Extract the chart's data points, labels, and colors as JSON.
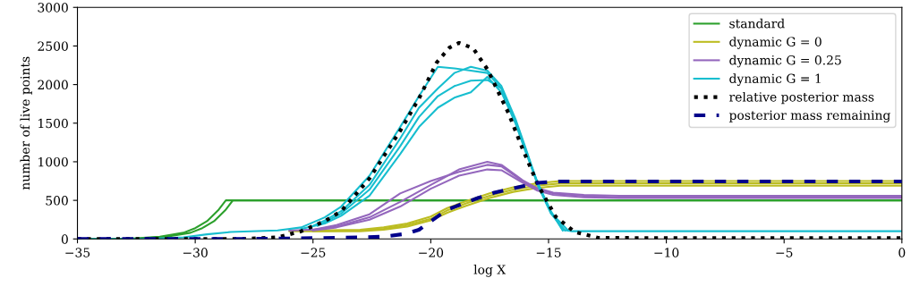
{
  "chart_data": {
    "type": "line",
    "xlabel": "log X",
    "ylabel": "number of live points",
    "xlim": [
      -35,
      0
    ],
    "ylim": [
      0,
      3000
    ],
    "xticks": [
      {
        "value": -35,
        "label": "−35"
      },
      {
        "value": -30,
        "label": "−30"
      },
      {
        "value": -25,
        "label": "−25"
      },
      {
        "value": -20,
        "label": "−20"
      },
      {
        "value": -15,
        "label": "−15"
      },
      {
        "value": -10,
        "label": "−10"
      },
      {
        "value": -5,
        "label": "−5"
      },
      0
    ],
    "yticks": [
      0,
      500,
      1000,
      1500,
      2000,
      2500,
      3000
    ],
    "grid": false,
    "legend": "top right",
    "marker": "none",
    "series": [
      {
        "name": "standard",
        "color": "#2ca02c",
        "line_style": "solid",
        "x": [
          -35,
          -33.5,
          -32.5,
          -31.5,
          -30.5,
          -30,
          -29.5,
          -29,
          -28.7,
          0
        ],
        "values": [
          0,
          0,
          10,
          30,
          80,
          140,
          230,
          380,
          500,
          500
        ]
      },
      {
        "color": "#2ca02c",
        "line_style": "solid",
        "x": [
          -35,
          -33.2,
          -32.2,
          -31.2,
          -30.2,
          -29.7,
          -29.2,
          -28.7,
          -28.4,
          0
        ],
        "values": [
          0,
          0,
          10,
          30,
          80,
          140,
          230,
          380,
          500,
          500
        ]
      },
      {
        "name": "dynamic G = 0",
        "color": "#bcbd22",
        "line_style": "solid",
        "x": [
          -26,
          -25,
          -23,
          -22,
          -21,
          -20,
          -19.3,
          -18.5,
          -17.5,
          -16.5,
          -15.5,
          -14.5,
          0
        ],
        "values": [
          100,
          100,
          110,
          130,
          180,
          260,
          370,
          460,
          560,
          640,
          690,
          720,
          720
        ]
      },
      {
        "color": "#bcbd22",
        "line_style": "solid",
        "x": [
          -25.5,
          -25,
          -23,
          -22,
          -21,
          -20,
          -19.3,
          -18.5,
          -17.5,
          -16.5,
          -15.5,
          -14.5,
          0
        ],
        "values": [
          110,
          110,
          120,
          150,
          200,
          290,
          400,
          490,
          590,
          670,
          720,
          750,
          750
        ]
      },
      {
        "color": "#bcbd22",
        "line_style": "solid",
        "x": [
          -25,
          -24,
          -23,
          -22,
          -21,
          -20,
          -19.3,
          -18.5,
          -17.5,
          -16.5,
          -15.5,
          -14.5,
          0
        ],
        "values": [
          100,
          100,
          100,
          120,
          160,
          240,
          340,
          430,
          530,
          610,
          660,
          690,
          690
        ]
      },
      {
        "name": "dynamic G = 0.25",
        "color": "#9467bd",
        "line_style": "solid",
        "x": [
          -26,
          -25,
          -24,
          -22.6,
          -21.3,
          -20,
          -18.8,
          -17.6,
          -17,
          -16.1,
          -15.5,
          -14.8,
          -13.5,
          -12,
          0
        ],
        "values": [
          110,
          120,
          180,
          320,
          590,
          750,
          870,
          960,
          940,
          750,
          650,
          590,
          560,
          540,
          540
        ]
      },
      {
        "color": "#9467bd",
        "line_style": "solid",
        "x": [
          -25.5,
          -25,
          -24,
          -22.6,
          -21.3,
          -20,
          -18.8,
          -17.6,
          -17,
          -16.1,
          -15.5,
          -14.8,
          -13.5,
          -12,
          0
        ],
        "values": [
          120,
          120,
          160,
          280,
          480,
          700,
          900,
          1000,
          960,
          760,
          660,
          600,
          570,
          560,
          560
        ]
      },
      {
        "color": "#9467bd",
        "line_style": "solid",
        "x": [
          -25,
          -24,
          -22.6,
          -21.3,
          -20,
          -18.8,
          -17.6,
          -17,
          -16.1,
          -15.5,
          -14.8,
          -13.5,
          -12,
          0
        ],
        "values": [
          110,
          150,
          250,
          420,
          650,
          820,
          900,
          890,
          730,
          630,
          570,
          540,
          530,
          530
        ]
      },
      {
        "name": "dynamic G = 1",
        "color": "#17becf",
        "line_style": "solid",
        "x": [
          -35,
          -32,
          -30.5,
          -29.5,
          -28.5,
          -26.5,
          -25.5,
          -24.5,
          -23.8,
          -22.6,
          -21.3,
          -20.5,
          -19.7,
          -19,
          -18.3,
          -17.6,
          -17,
          -16.4,
          -16,
          -15.45,
          -14.9,
          -14.4,
          -14,
          0
        ],
        "values": [
          0,
          0,
          20,
          60,
          90,
          110,
          150,
          280,
          420,
          820,
          1450,
          1850,
          2230,
          2210,
          2180,
          2150,
          1950,
          1500,
          1170,
          700,
          350,
          120,
          100,
          100
        ]
      },
      {
        "color": "#17becf",
        "line_style": "solid",
        "x": [
          -25.5,
          -24.5,
          -23.8,
          -22.6,
          -21.3,
          -20.5,
          -19.7,
          -19,
          -18.3,
          -17.6,
          -17,
          -16.4,
          -16,
          -15.45,
          -14.9,
          -14.4
        ],
        "values": [
          130,
          200,
          300,
          560,
          1100,
          1450,
          1700,
          1830,
          1900,
          2100,
          1900,
          1500,
          1150,
          720,
          360,
          110
        ]
      },
      {
        "color": "#17becf",
        "line_style": "solid",
        "x": [
          -25,
          -24.5,
          -23.8,
          -22.6,
          -21.3,
          -20.5,
          -19.7,
          -19,
          -18.3,
          -17.6,
          -17,
          -16.4,
          -16,
          -15.45,
          -14.9,
          -14.2
        ],
        "values": [
          170,
          240,
          360,
          700,
          1300,
          1700,
          1950,
          2150,
          2230,
          2180,
          1980,
          1550,
          1200,
          710,
          340,
          120
        ]
      },
      {
        "color": "#17becf",
        "line_style": "solid",
        "x": [
          -24.8,
          -24.5,
          -23.8,
          -22.6,
          -21.3,
          -20.5,
          -19.7,
          -19,
          -18.3,
          -17.6,
          -17,
          -16.4,
          -16,
          -15.45,
          -14.9,
          -14.3
        ],
        "values": [
          170,
          220,
          330,
          640,
          1200,
          1580,
          1850,
          1980,
          2050,
          2060,
          1950,
          1520,
          1180,
          690,
          330,
          110
        ]
      },
      {
        "name": "relative posterior mass",
        "color": "#000000",
        "line_style": "dotted",
        "x": [
          -35,
          -28,
          -26.5,
          -25.5,
          -24.5,
          -23.8,
          -22.6,
          -21.3,
          -20.5,
          -19.75,
          -19.2,
          -18.8,
          -18.2,
          -17.6,
          -16.7,
          -16.1,
          -15.45,
          -14.7,
          -13.9,
          -12.9,
          -10,
          0
        ],
        "values": [
          0,
          0,
          20,
          100,
          230,
          360,
          785,
          1400,
          1820,
          2285,
          2480,
          2540,
          2470,
          2200,
          1630,
          1165,
          700,
          290,
          92,
          15,
          10,
          10
        ]
      },
      {
        "name": "posterior mass remaining",
        "color": "#00008b",
        "line_style": "dashed",
        "x": [
          -35,
          -28,
          -25,
          -23,
          -22,
          -21,
          -20.5,
          -19.3,
          -18,
          -17.3,
          -16.7,
          -15.45,
          -14.5,
          0
        ],
        "values": [
          0,
          0,
          10,
          20,
          30,
          70,
          120,
          380,
          530,
          600,
          640,
          727,
          745,
          745
        ]
      }
    ]
  }
}
